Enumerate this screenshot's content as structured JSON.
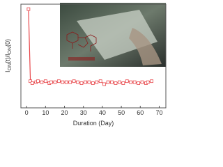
{
  "chart_data": {
    "type": "line",
    "x_label": "Duration (Day)",
    "y_label": [
      "I",
      "ON",
      "(t)/I",
      "ON",
      "(0)"
    ],
    "x": [
      1,
      2,
      3,
      5,
      6,
      8,
      10,
      12,
      13,
      15,
      17,
      19,
      21,
      23,
      25,
      27,
      29,
      31,
      33,
      35,
      37,
      39,
      41,
      43,
      45,
      47,
      49,
      51,
      53,
      55,
      57,
      59,
      61,
      63,
      64,
      66
    ],
    "series": [
      {
        "color": "#e8474b",
        "values": [
          1.0,
          0.27,
          0.25,
          0.26,
          0.27,
          0.26,
          0.27,
          0.25,
          0.26,
          0.26,
          0.27,
          0.26,
          0.26,
          0.26,
          0.27,
          0.26,
          0.25,
          0.26,
          0.26,
          0.25,
          0.26,
          0.27,
          0.24,
          0.26,
          0.26,
          0.25,
          0.26,
          0.25,
          0.27,
          0.26,
          0.26,
          0.25,
          0.26,
          0.25,
          0.26,
          0.27
        ]
      }
    ],
    "xlim": [
      -3,
      73.5
    ],
    "xticks": [
      0,
      10,
      20,
      30,
      40,
      50,
      60,
      70
    ],
    "ylim": [
      0,
      1.05
    ]
  }
}
